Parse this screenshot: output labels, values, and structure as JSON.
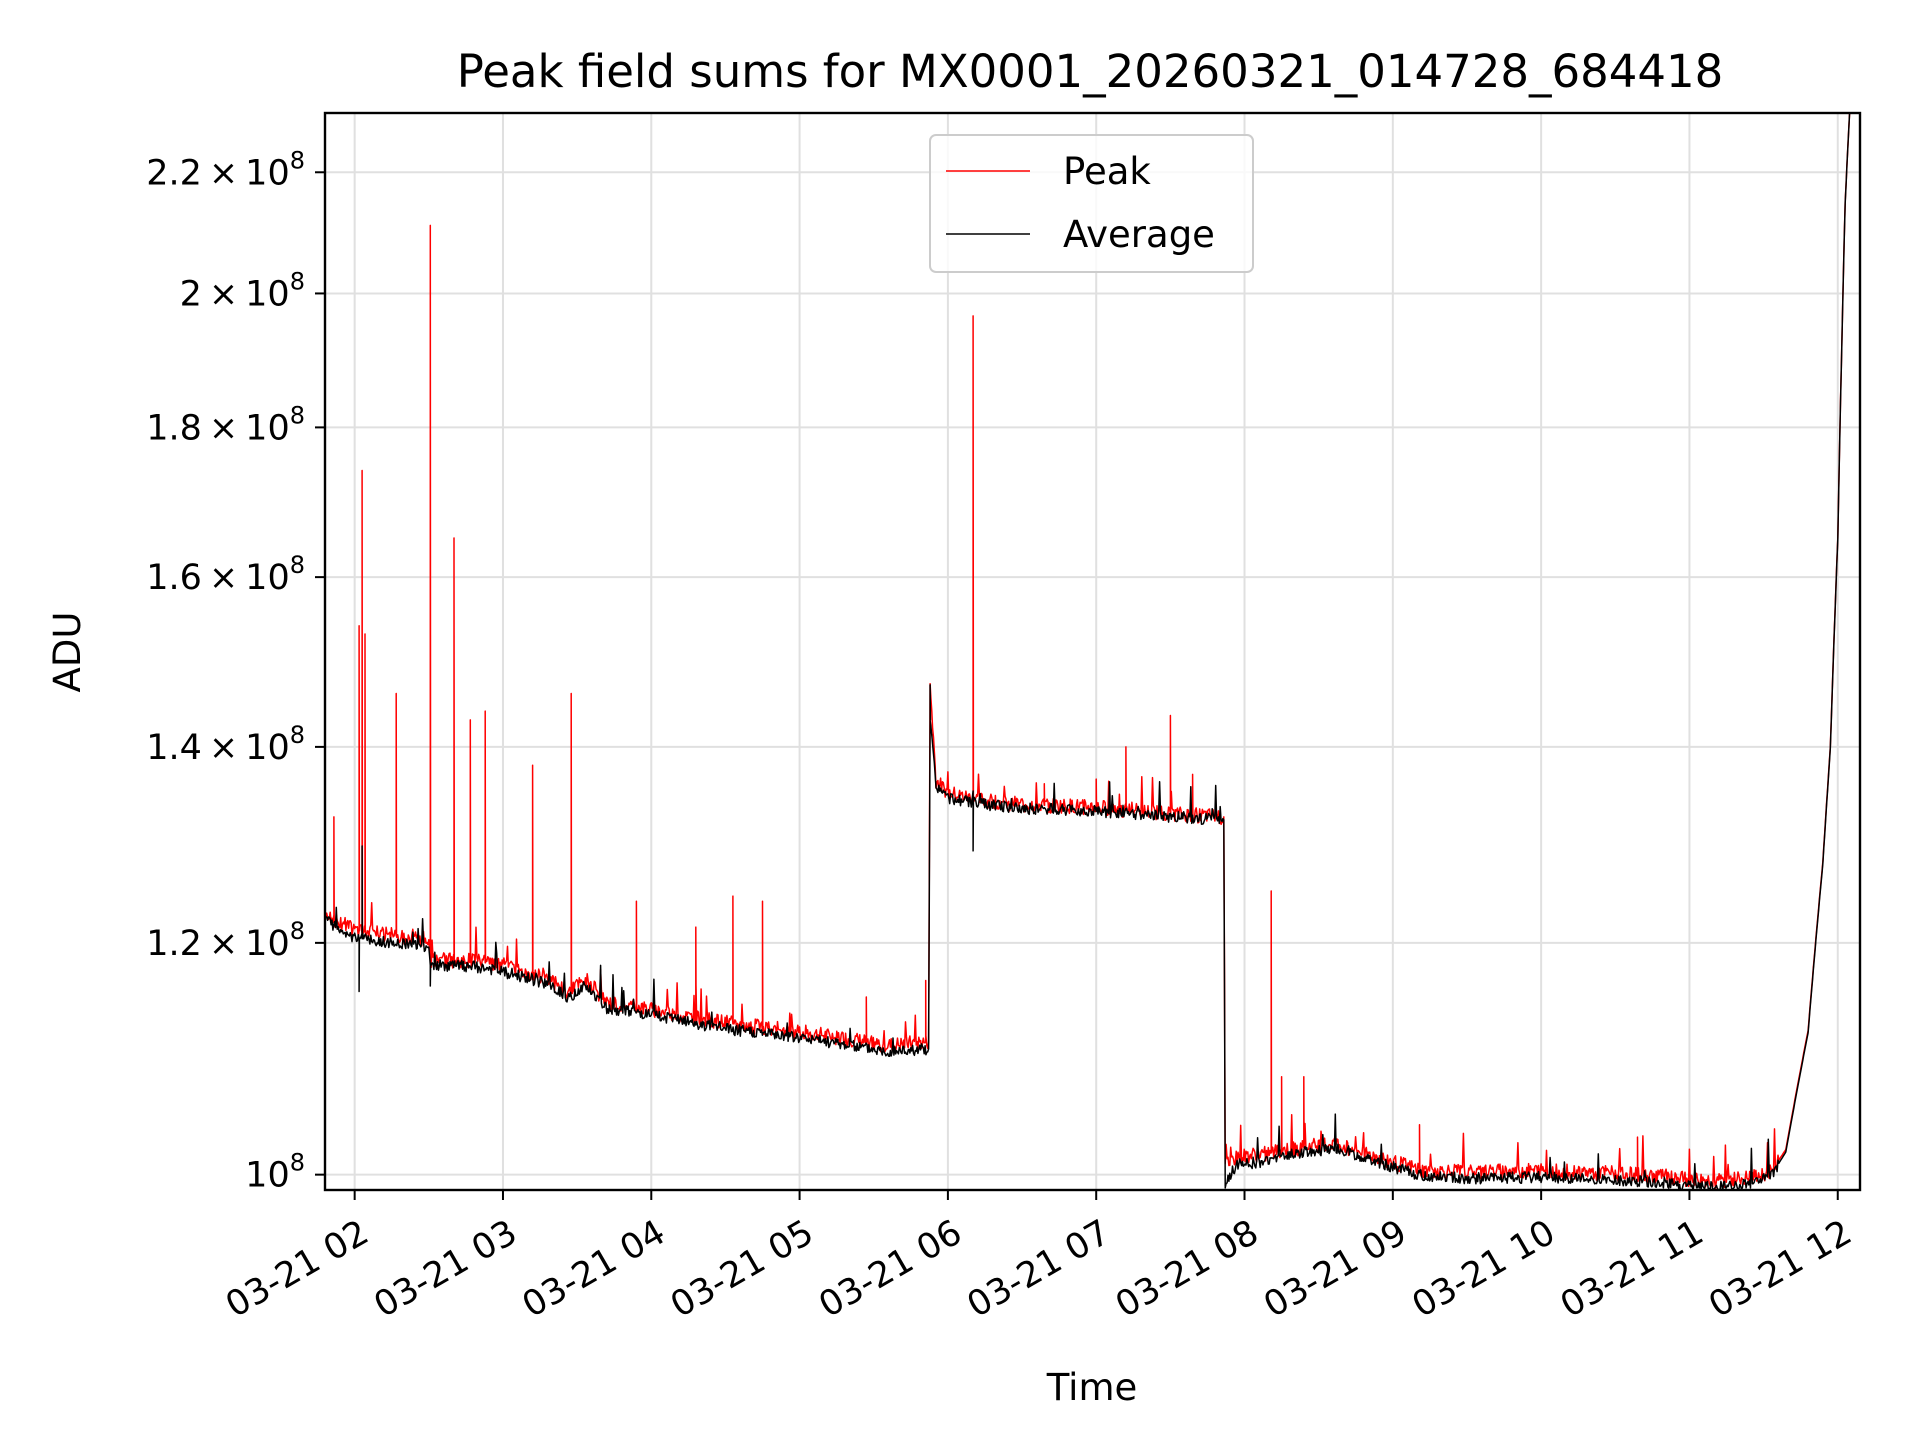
{
  "chart_data": {
    "type": "line",
    "title": "Peak field sums for MX0001_20260321_014728_684418",
    "xlabel": "Time",
    "ylabel": "ADU",
    "yscale": "log",
    "grid": true,
    "legend_placement": "upper center",
    "xlim": [
      1.8,
      12.15
    ],
    "ylim": [
      98800000,
      230500000
    ],
    "x_ticks": [
      {
        "value": 2,
        "label": "03-21 02"
      },
      {
        "value": 3,
        "label": "03-21 03"
      },
      {
        "value": 4,
        "label": "03-21 04"
      },
      {
        "value": 5,
        "label": "03-21 05"
      },
      {
        "value": 6,
        "label": "03-21 06"
      },
      {
        "value": 7,
        "label": "03-21 07"
      },
      {
        "value": 8,
        "label": "03-21 08"
      },
      {
        "value": 9,
        "label": "03-21 09"
      },
      {
        "value": 10,
        "label": "03-21 10"
      },
      {
        "value": 11,
        "label": "03-21 11"
      },
      {
        "value": 12,
        "label": "03-21 12"
      }
    ],
    "y_ticks": [
      {
        "value": 100000000,
        "mantissa": "",
        "exponent": "8"
      },
      {
        "value": 120000000,
        "mantissa": "1.2",
        "exponent": "8"
      },
      {
        "value": 140000000,
        "mantissa": "1.4",
        "exponent": "8"
      },
      {
        "value": 160000000,
        "mantissa": "1.6",
        "exponent": "8"
      },
      {
        "value": 180000000,
        "mantissa": "1.8",
        "exponent": "8"
      },
      {
        "value": 200000000,
        "mantissa": "2",
        "exponent": "8"
      },
      {
        "value": 220000000,
        "mantissa": "2.2",
        "exponent": "8"
      }
    ],
    "series": [
      {
        "name": "Peak",
        "color": "#ff0000",
        "points": [
          [
            1.8,
            123000000
          ],
          [
            1.9,
            121800000
          ],
          [
            2.0,
            121200000
          ],
          [
            2.2,
            120800000
          ],
          [
            2.5,
            120300000
          ],
          [
            2.51,
            118400000
          ],
          [
            2.8,
            118300000
          ],
          [
            3.0,
            117900000
          ],
          [
            3.2,
            117100000
          ],
          [
            3.3,
            116600000
          ],
          [
            3.45,
            115400000
          ],
          [
            3.55,
            116800000
          ],
          [
            3.7,
            114500000
          ],
          [
            4.0,
            113900000
          ],
          [
            4.3,
            113100000
          ],
          [
            4.6,
            112500000
          ],
          [
            5.0,
            111900000
          ],
          [
            5.4,
            111100000
          ],
          [
            5.6,
            110700000
          ],
          [
            5.87,
            111000000
          ],
          [
            5.88,
            147000000
          ],
          [
            5.92,
            136300000
          ],
          [
            6.0,
            135000000
          ],
          [
            6.2,
            134300000
          ],
          [
            6.5,
            133800000
          ],
          [
            7.0,
            133500000
          ],
          [
            7.5,
            132800000
          ],
          [
            7.86,
            132500000
          ],
          [
            7.87,
            100800000
          ],
          [
            7.95,
            101400000
          ],
          [
            8.1,
            101600000
          ],
          [
            8.3,
            102000000
          ],
          [
            8.6,
            102500000
          ],
          [
            9.0,
            101000000
          ],
          [
            9.2,
            100300000
          ],
          [
            9.5,
            100200000
          ],
          [
            10.0,
            100300000
          ],
          [
            10.5,
            100100000
          ],
          [
            10.8,
            99900000
          ],
          [
            11.0,
            99600000
          ],
          [
            11.2,
            99500000
          ],
          [
            11.4,
            99700000
          ],
          [
            11.55,
            100200000
          ],
          [
            11.65,
            102000000
          ],
          [
            11.8,
            112000000
          ],
          [
            11.9,
            128000000
          ],
          [
            11.95,
            140000000
          ],
          [
            12.0,
            165000000
          ],
          [
            12.05,
            215000000
          ],
          [
            12.08,
            230500000
          ]
        ],
        "spikes": [
          [
            1.86,
            132500000
          ],
          [
            2.03,
            154000000
          ],
          [
            2.05,
            174000000
          ],
          [
            2.07,
            153000000
          ],
          [
            2.28,
            146000000
          ],
          [
            2.51,
            211000000
          ],
          [
            2.67,
            165000000
          ],
          [
            2.78,
            143000000
          ],
          [
            2.88,
            144000000
          ],
          [
            3.2,
            138000000
          ],
          [
            3.46,
            146000000
          ],
          [
            3.9,
            124000000
          ],
          [
            4.3,
            121500000
          ],
          [
            4.55,
            124500000
          ],
          [
            4.75,
            124000000
          ],
          [
            5.45,
            115000000
          ],
          [
            5.85,
            116500000
          ],
          [
            6.17,
            196500000
          ],
          [
            6.65,
            136000000
          ],
          [
            7.0,
            136500000
          ],
          [
            7.2,
            140000000
          ],
          [
            7.5,
            143500000
          ],
          [
            7.65,
            137000000
          ],
          [
            8.18,
            125000000
          ],
          [
            8.25,
            108000000
          ],
          [
            8.4,
            108000000
          ],
          [
            9.18,
            104000000
          ],
          [
            10.65,
            103000000
          ]
        ]
      },
      {
        "name": "Average",
        "color": "#000000",
        "points": [
          [
            1.8,
            122500000
          ],
          [
            1.9,
            121000000
          ],
          [
            2.0,
            120500000
          ],
          [
            2.2,
            120100000
          ],
          [
            2.5,
            119600000
          ],
          [
            2.51,
            117900000
          ],
          [
            2.8,
            117800000
          ],
          [
            3.0,
            117300000
          ],
          [
            3.2,
            116600000
          ],
          [
            3.3,
            116100000
          ],
          [
            3.45,
            114900000
          ],
          [
            3.55,
            116200000
          ],
          [
            3.7,
            114000000
          ],
          [
            4.0,
            113400000
          ],
          [
            4.3,
            112600000
          ],
          [
            4.6,
            112000000
          ],
          [
            5.0,
            111400000
          ],
          [
            5.4,
            110600000
          ],
          [
            5.6,
            110200000
          ],
          [
            5.87,
            110400000
          ],
          [
            5.88,
            143000000
          ],
          [
            5.92,
            135800000
          ],
          [
            6.0,
            134500000
          ],
          [
            6.2,
            133900000
          ],
          [
            6.5,
            133400000
          ],
          [
            7.0,
            133100000
          ],
          [
            7.5,
            132500000
          ],
          [
            7.86,
            132200000
          ],
          [
            7.87,
            99300000
          ],
          [
            7.95,
            100800000
          ],
          [
            8.1,
            101000000
          ],
          [
            8.3,
            101600000
          ],
          [
            8.6,
            102100000
          ],
          [
            9.0,
            100600000
          ],
          [
            9.2,
            99900000
          ],
          [
            9.5,
            99700000
          ],
          [
            10.0,
            99800000
          ],
          [
            10.5,
            99600000
          ],
          [
            10.8,
            99400000
          ],
          [
            11.0,
            99100000
          ],
          [
            11.2,
            99000000
          ],
          [
            11.4,
            99300000
          ],
          [
            11.55,
            99900000
          ],
          [
            11.65,
            101800000
          ],
          [
            11.8,
            111800000
          ],
          [
            11.9,
            127800000
          ],
          [
            11.95,
            139800000
          ],
          [
            12.0,
            164800000
          ],
          [
            12.05,
            214800000
          ],
          [
            12.08,
            230500000
          ]
        ],
        "spikes": [
          [
            2.03,
            115500000
          ],
          [
            2.05,
            129500000
          ],
          [
            2.51,
            116000000
          ],
          [
            6.17,
            129000000
          ],
          [
            7.87,
            99100000
          ],
          [
            5.88,
            147000000
          ]
        ]
      }
    ]
  }
}
